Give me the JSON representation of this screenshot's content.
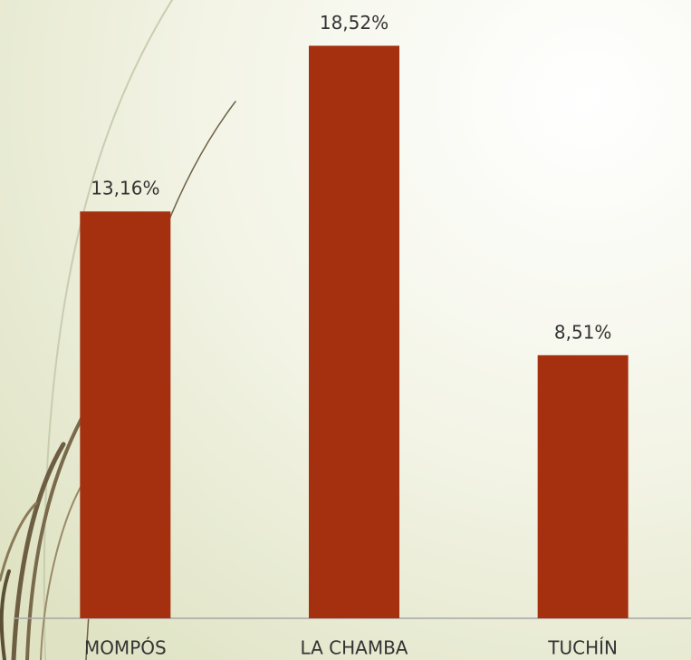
{
  "chart_data": {
    "type": "bar",
    "categories": [
      "MOMPÓS",
      "LA CHAMBA",
      "TUCHÍN"
    ],
    "values": [
      13.16,
      18.52,
      8.51
    ],
    "value_labels": [
      "13,16%",
      "18,52%",
      "8,51%"
    ],
    "color": "#a5300f",
    "ylim": [
      0,
      20
    ]
  }
}
